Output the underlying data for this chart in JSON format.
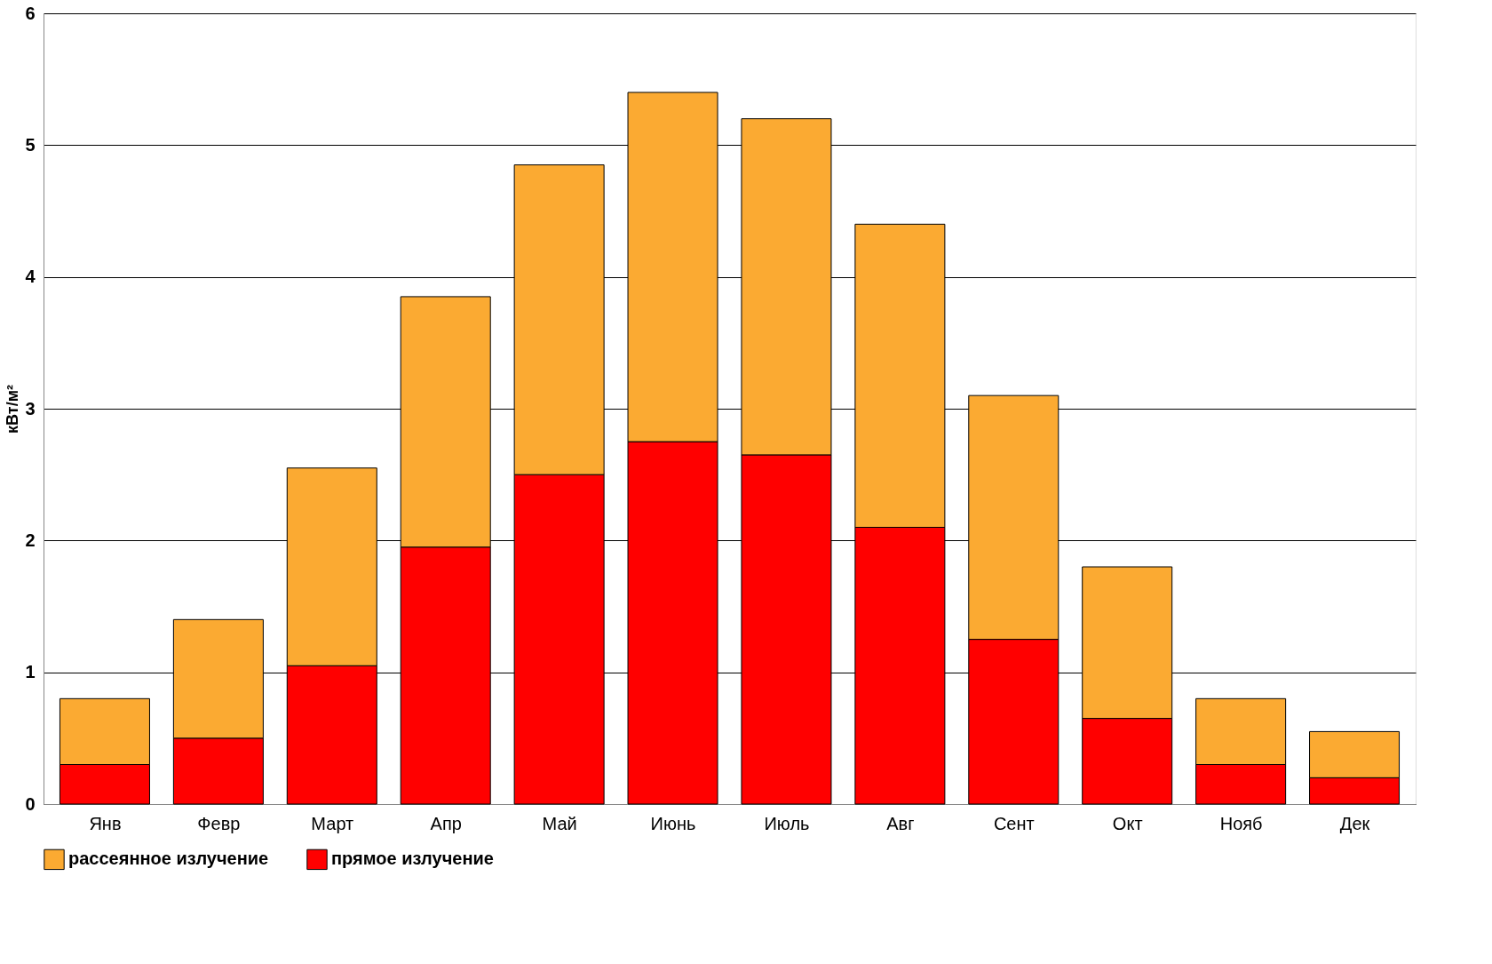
{
  "chart_data": {
    "type": "bar",
    "stacked": true,
    "ylabel": "кВт/м²",
    "categories": [
      "Янв",
      "Февр",
      "Март",
      "Апр",
      "Май",
      "Июнь",
      "Июль",
      "Авг",
      "Сент",
      "Окт",
      "Нояб",
      "Дек"
    ],
    "series": [
      {
        "name": "прямое излучение",
        "color": "#ff0000",
        "values": [
          0.3,
          0.5,
          1.05,
          1.95,
          2.5,
          2.75,
          2.65,
          2.1,
          1.25,
          0.65,
          0.3,
          0.2
        ]
      },
      {
        "name": "рассеянное излучение",
        "color": "#fbaa32",
        "values": [
          0.5,
          0.9,
          1.5,
          1.9,
          2.35,
          2.65,
          2.55,
          2.3,
          1.85,
          1.15,
          0.5,
          0.35
        ]
      }
    ],
    "ylim": [
      0,
      6
    ],
    "yticks": [
      0,
      1,
      2,
      3,
      4,
      5,
      6
    ],
    "grid": "y",
    "legend": "bottom"
  }
}
